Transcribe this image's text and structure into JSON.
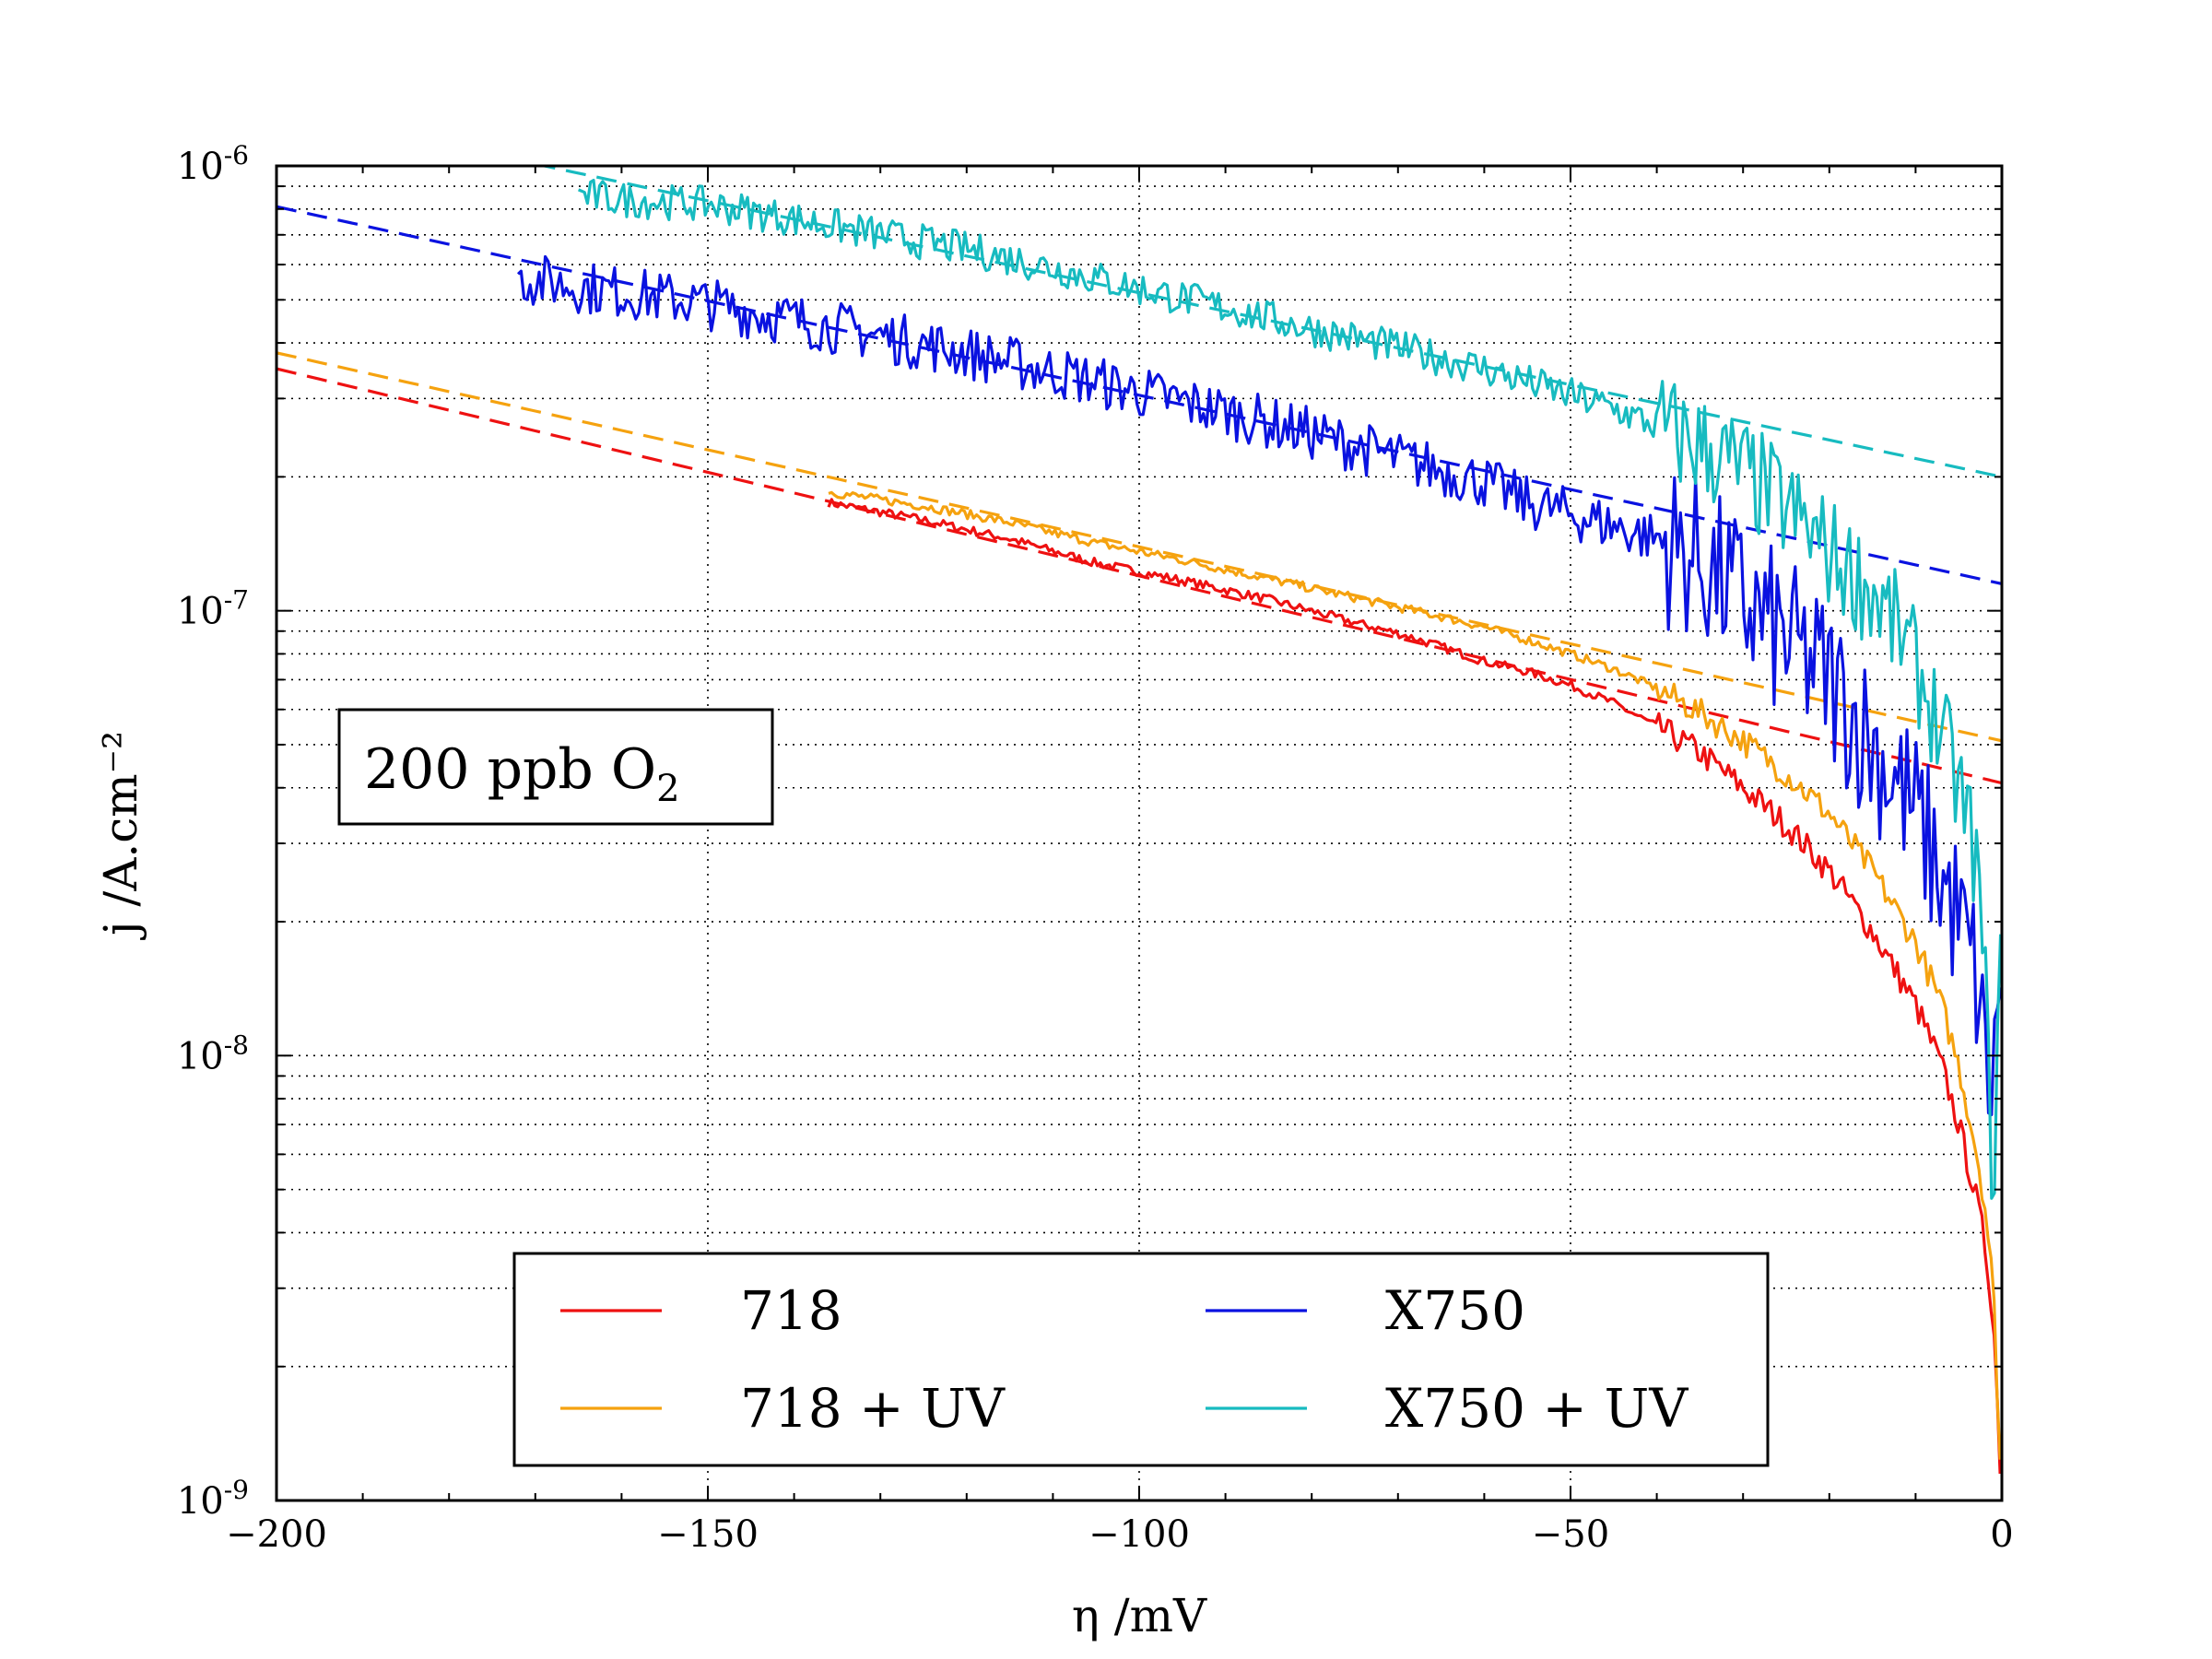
{
  "chart_data": {
    "type": "line",
    "xlabel": "η /mV",
    "ylabel": "j /A.cm⁻²",
    "xlim": [
      -200,
      0
    ],
    "ylim": [
      1e-09,
      1e-06
    ],
    "yscale": "log",
    "grid": true,
    "x_ticks": [
      {
        "value": -200,
        "label": "−200"
      },
      {
        "value": -150,
        "label": "−150"
      },
      {
        "value": -100,
        "label": "−100"
      },
      {
        "value": -50,
        "label": "−50"
      },
      {
        "value": 0,
        "label": "0"
      }
    ],
    "y_ticks": [
      {
        "value": 1e-09,
        "base": "10",
        "exp": "-9"
      },
      {
        "value": 1e-08,
        "base": "10",
        "exp": "-8"
      },
      {
        "value": 1e-07,
        "base": "10",
        "exp": "-7"
      },
      {
        "value": 1e-06,
        "base": "10",
        "exp": "-6"
      }
    ],
    "annotation": {
      "main": "200 ppb O",
      "sub": "2"
    },
    "legend": {
      "position": "lower center",
      "columns": 2
    },
    "series": [
      {
        "name": "718",
        "color": "#ee1111",
        "style": "solid",
        "noise": 0.01,
        "x": [
          -136,
          -125,
          -115,
          -105,
          -95,
          -85,
          -75,
          -70,
          -65,
          -60,
          -55,
          -50,
          -45,
          -40,
          -35,
          -30,
          -25,
          -20,
          -15,
          -10,
          -7,
          -5,
          -3,
          -2,
          -1,
          0
        ],
        "y": [
          1.75e-07,
          1.6e-07,
          1.45e-07,
          1.28e-07,
          1.17e-07,
          1.06e-07,
          9.4e-08,
          8.9e-08,
          8.3e-08,
          7.7e-08,
          7.3e-08,
          6.8e-08,
          6.2e-08,
          5.5e-08,
          4.8e-08,
          4e-08,
          3.3e-08,
          2.6e-08,
          1.9e-08,
          1.3e-08,
          9.5e-09,
          7e-09,
          4.8e-09,
          3.8e-09,
          2.6e-09,
          1e-09
        ]
      },
      {
        "name": "718 + UV",
        "color": "#f5a20f",
        "style": "solid",
        "noise": 0.01,
        "x": [
          -136,
          -125,
          -115,
          -105,
          -95,
          -85,
          -75,
          -65,
          -60,
          -55,
          -50,
          -45,
          -40,
          -35,
          -30,
          -25,
          -20,
          -15,
          -10,
          -7,
          -5,
          -3,
          -2,
          -1,
          0
        ],
        "y": [
          1.85e-07,
          1.72e-07,
          1.58e-07,
          1.42e-07,
          1.3e-07,
          1.18e-07,
          1.07e-07,
          9.7e-08,
          9.2e-08,
          8.6e-08,
          8e-08,
          7.4e-08,
          6.7e-08,
          5.9e-08,
          5.1e-08,
          4.3e-08,
          3.5e-08,
          2.6e-08,
          1.8e-08,
          1.3e-08,
          9.5e-09,
          6.2e-09,
          4.7e-09,
          3e-09,
          1e-09
        ]
      },
      {
        "name": "X750",
        "color": "#0a12e0",
        "style": "solid",
        "noise": 0.06,
        "x": [
          -172,
          -160,
          -150,
          -140,
          -130,
          -120,
          -110,
          -100,
          -90,
          -80,
          -70,
          -60,
          -55,
          -50,
          -45,
          -40,
          -35,
          -30,
          -25,
          -20,
          -15,
          -10,
          -5,
          -3,
          -2,
          -1,
          0
        ],
        "y": [
          5.6e-07,
          5.2e-07,
          4.9e-07,
          4.5e-07,
          4.15e-07,
          3.8e-07,
          3.45e-07,
          3.1e-07,
          2.8e-07,
          2.5e-07,
          2.2e-07,
          1.95e-07,
          1.75e-07,
          1.65e-07,
          1.55e-07,
          1.45e-07,
          1.3e-07,
          1.05e-07,
          8.5e-08,
          7e-08,
          5e-08,
          3.5e-08,
          2e-08,
          1.5e-08,
          1e-08,
          8e-09,
          2e-08
        ]
      },
      {
        "name": "X750 + UV",
        "color": "#17bbc0",
        "style": "solid",
        "noise": 0.04,
        "x": [
          -165,
          -160,
          -150,
          -140,
          -130,
          -120,
          -110,
          -100,
          -90,
          -80,
          -70,
          -60,
          -50,
          -45,
          -40,
          -35,
          -30,
          -25,
          -20,
          -15,
          -12,
          -10,
          -8,
          -5,
          -3,
          -2,
          -1,
          0
        ],
        "y": [
          8.6e-07,
          8.4e-07,
          8.2e-07,
          7.6e-07,
          7e-07,
          6.5e-07,
          5.9e-07,
          5.3e-07,
          4.8e-07,
          4.3e-07,
          3.9e-07,
          3.5e-07,
          3.05e-07,
          2.85e-07,
          2.6e-07,
          2.35e-07,
          2.05e-07,
          1.7e-07,
          1.35e-07,
          1.1e-07,
          9e-08,
          7.5e-08,
          6e-08,
          4e-08,
          2.8e-08,
          1.5e-08,
          5e-09,
          1.8e-08
        ]
      },
      {
        "name": "",
        "color": "#ee1111",
        "style": "dashed",
        "role": "fit of 718",
        "x": [
          -200,
          0
        ],
        "y": [
          3.5e-07,
          4.1e-08
        ]
      },
      {
        "name": "",
        "color": "#f5a20f",
        "style": "dashed",
        "role": "fit of 718 + UV",
        "x": [
          -200,
          0
        ],
        "y": [
          3.8e-07,
          5.1e-08
        ]
      },
      {
        "name": "",
        "color": "#0a12e0",
        "style": "dashed",
        "role": "fit of X750",
        "x": [
          -200,
          0
        ],
        "y": [
          8.1e-07,
          1.15e-07
        ]
      },
      {
        "name": "",
        "color": "#17bbc0",
        "style": "dashed",
        "role": "fit of X750 + UV",
        "x": [
          -170,
          0
        ],
        "y": [
          1.01e-06,
          2e-07
        ]
      }
    ]
  }
}
